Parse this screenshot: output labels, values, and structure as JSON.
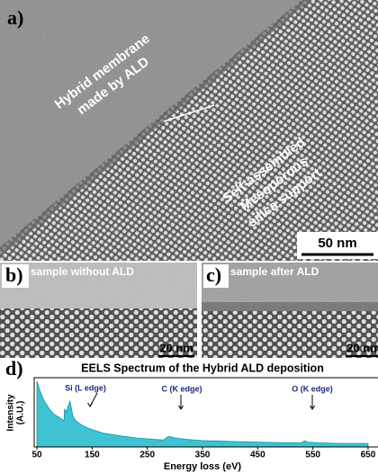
{
  "panels": {
    "a": {
      "label": "a)",
      "membrane_note": [
        "Hybrid membrane",
        "made by ALD"
      ],
      "support_note": [
        "Self-assembled",
        "Mesoporous",
        "silica support"
      ],
      "scale_bar": "50 nm"
    },
    "b": {
      "label": "b)",
      "caption": "sample without ALD",
      "scale_bar": "20 nm"
    },
    "c": {
      "label": "c)",
      "caption": "sample after ALD",
      "scale_bar": "20 nm"
    },
    "d": {
      "label": "d)"
    }
  },
  "chart_data": {
    "type": "area",
    "title": "EELS Spectrum of the Hybrid ALD deposition",
    "x_label": "Energy loss (eV)",
    "y_label": [
      "Intensity",
      "(A.U.)"
    ],
    "annotations": [
      "Si (L edge)",
      "C (K edge)",
      "O (K edge)"
    ],
    "color": "#3fc3d3",
    "x": [
      50,
      55,
      60,
      65,
      70,
      75,
      80,
      85,
      90,
      95,
      99,
      100,
      103,
      106,
      110,
      115,
      120,
      130,
      140,
      150,
      170,
      200,
      230,
      260,
      280,
      285,
      290,
      300,
      320,
      350,
      400,
      450,
      500,
      530,
      535,
      540,
      560,
      600,
      650
    ],
    "values": [
      95,
      82,
      72,
      64,
      58,
      52,
      48,
      45,
      43,
      40,
      38,
      55,
      50,
      58,
      66,
      45,
      38,
      32,
      28,
      25,
      20,
      16,
      13,
      11,
      10,
      14,
      15,
      13,
      11,
      9,
      8,
      7,
      6,
      6,
      9,
      7,
      6,
      5,
      5
    ],
    "xlim": [
      45,
      655
    ],
    "xticks": [
      50,
      150,
      250,
      350,
      450,
      550,
      650
    ],
    "ylim": [
      0,
      100
    ]
  }
}
